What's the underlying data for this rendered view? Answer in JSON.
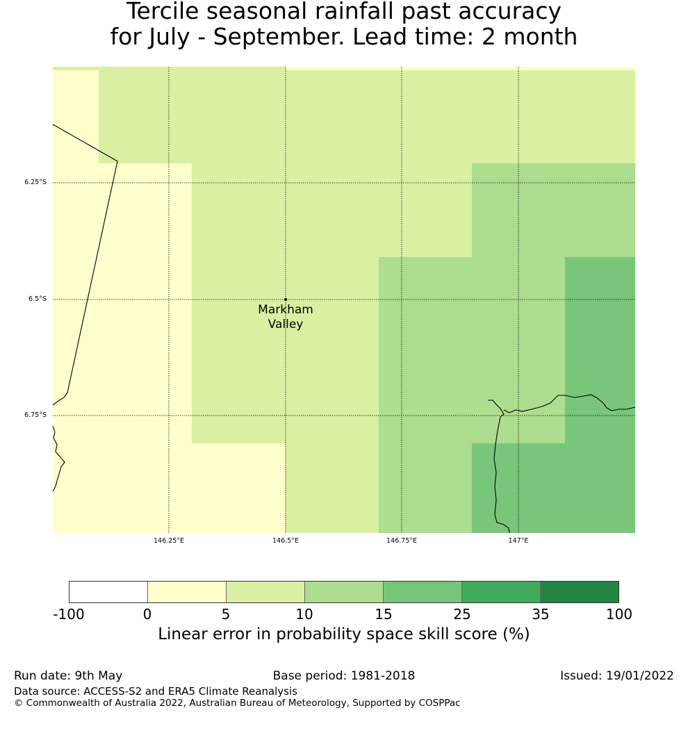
{
  "title": {
    "line1": "Tercile seasonal rainfall past accuracy",
    "line2": "for July - September. Lead time: 2 month"
  },
  "map": {
    "lat_labels": [
      "6.25°S",
      "6.5°S",
      "6.75°S"
    ],
    "lon_labels": [
      "146.25°E",
      "146.5°E",
      "146.75°E",
      "147°E"
    ],
    "place": {
      "name_line1": "Markham",
      "name_line2": "Valley",
      "lon": 146.5,
      "lat": -6.5
    }
  },
  "colorbar": {
    "ticks": [
      "-100",
      "0",
      "5",
      "10",
      "15",
      "25",
      "35",
      "100"
    ],
    "colors": [
      "#ffffff",
      "#ffffcc",
      "#d9f0a3",
      "#addd8e",
      "#78c679",
      "#41ab5d",
      "#238443"
    ],
    "label": "Linear error in probability space skill score (%)"
  },
  "footer": {
    "run_date": "Run date: 9th May",
    "base_period": "Base period: 1981-2018",
    "issued": "Issued: 19/01/2022",
    "data_source": "Data source: ACCESS-S2 and ERA5 Climate Reanalysis",
    "copyright": "© Commonwealth of Australia 2022, Australian Bureau of Meteorology, Supported by COSPPac"
  }
}
